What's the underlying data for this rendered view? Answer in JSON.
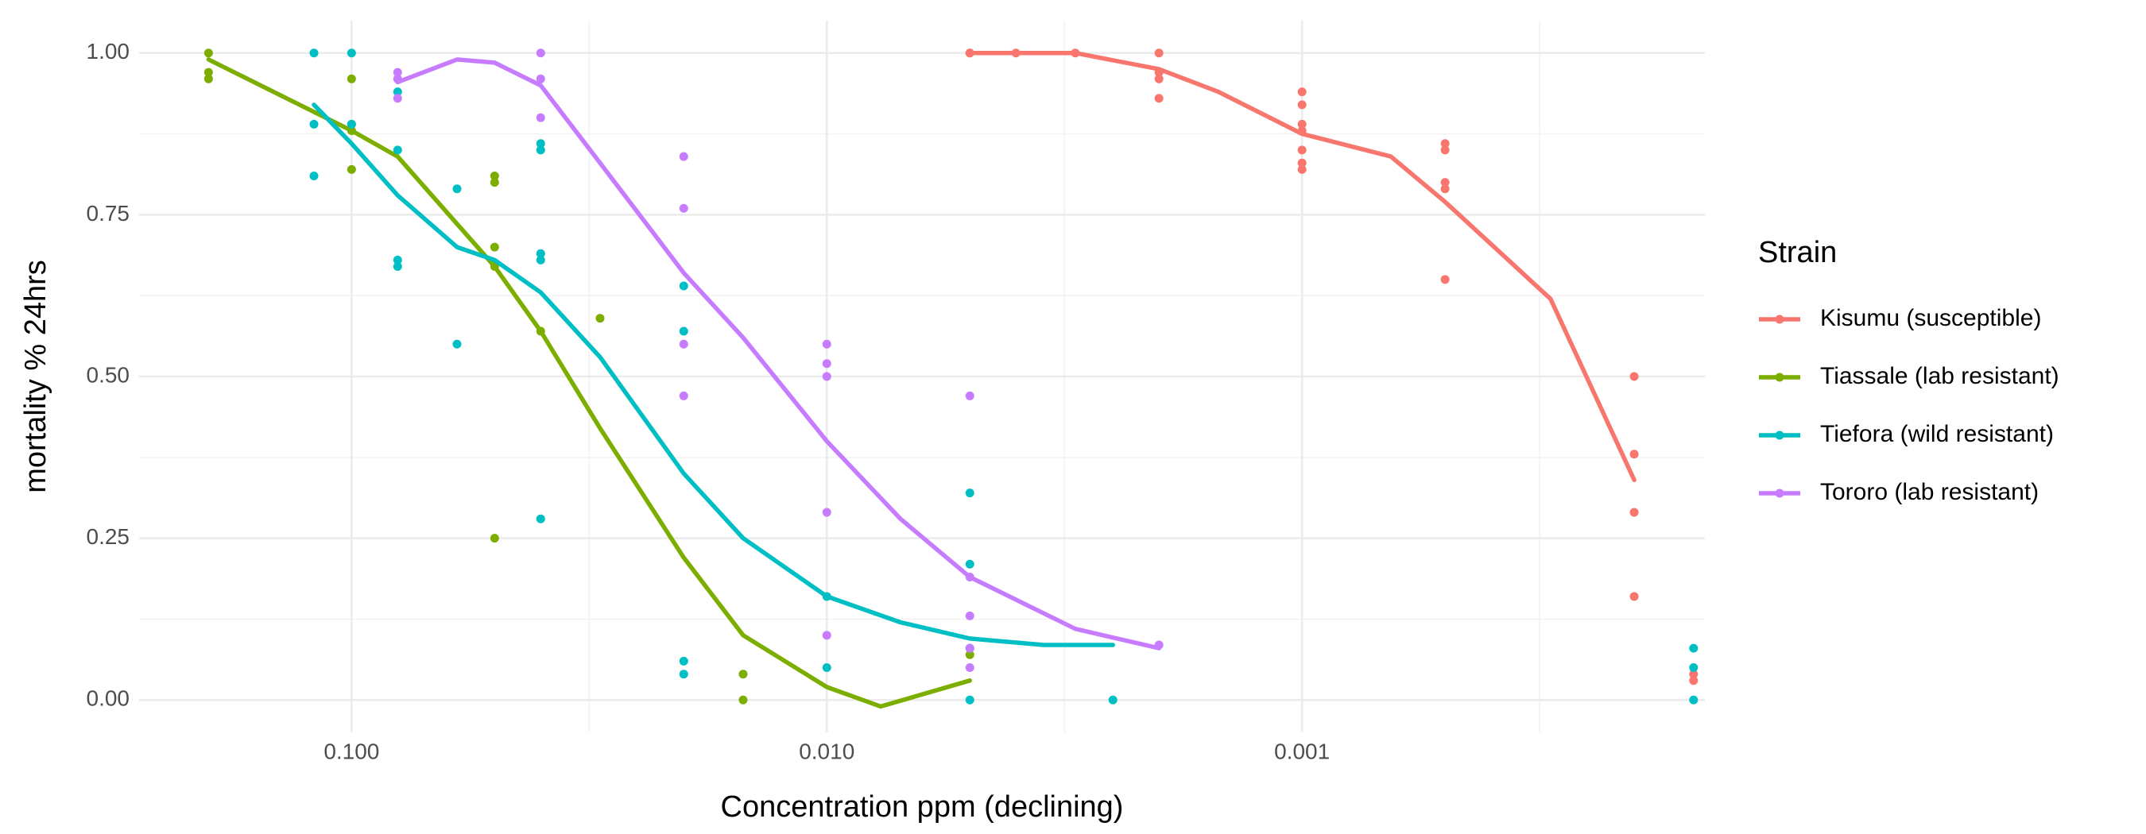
{
  "chart_data": {
    "type": "scatter",
    "x_label": "Concentration ppm (declining)",
    "y_label": "mortality % 24hrs",
    "xscale": "log",
    "xlim": [
      0.28,
      0.000142
    ],
    "ylim": [
      -0.05,
      1.05
    ],
    "xticks": [
      {
        "value": 0.1,
        "label": "0.100"
      },
      {
        "value": 0.01,
        "label": "0.010"
      },
      {
        "value": 0.001,
        "label": "0.001"
      }
    ],
    "yticks": [
      {
        "value": 0,
        "label": "0.00"
      },
      {
        "value": 0.25,
        "label": "0.25"
      },
      {
        "value": 0.5,
        "label": "0.50"
      },
      {
        "value": 0.75,
        "label": "0.75"
      },
      {
        "value": 1,
        "label": "1.00"
      }
    ],
    "grid": true,
    "legend_title": "Strain",
    "series": [
      {
        "name": "Kisumu (susceptible)",
        "color": "#F8766D",
        "x": [
          0.005,
          0.005,
          0.004,
          0.003,
          0.002,
          0.002,
          0.002,
          0.002,
          0.001,
          0.001,
          0.001,
          0.001,
          0.001,
          0.001,
          0.001,
          0.0005,
          0.0005,
          0.0005,
          0.0005,
          0.0005,
          0.0002,
          0.0002,
          0.0002,
          0.0002,
          0.00015,
          0.00015
        ],
        "values": [
          1.0,
          1.0,
          1.0,
          1.0,
          1.0,
          0.97,
          0.96,
          0.93,
          0.94,
          0.92,
          0.89,
          0.88,
          0.85,
          0.83,
          0.82,
          0.86,
          0.85,
          0.8,
          0.79,
          0.65,
          0.5,
          0.38,
          0.29,
          0.16,
          0.04,
          0.03
        ],
        "fit_x": [
          0.005,
          0.004,
          0.003,
          0.002,
          0.0015,
          0.001,
          0.00065,
          0.0005,
          0.0003,
          0.0002
        ],
        "fit_y": [
          1.0,
          1.0,
          1.0,
          0.975,
          0.94,
          0.875,
          0.84,
          0.77,
          0.62,
          0.34
        ]
      },
      {
        "name": "Tiassale (lab resistant)",
        "color": "#7CAE00",
        "x": [
          0.2,
          0.2,
          0.2,
          0.1,
          0.1,
          0.1,
          0.1,
          0.05,
          0.05,
          0.05,
          0.05,
          0.05,
          0.03,
          0.04,
          0.015,
          0.015,
          0.005,
          0.005
        ],
        "values": [
          1.0,
          0.97,
          0.96,
          0.96,
          0.89,
          0.88,
          0.82,
          0.81,
          0.8,
          0.7,
          0.67,
          0.25,
          0.59,
          0.57,
          0.04,
          0.0,
          0.08,
          0.07
        ],
        "fit_x": [
          0.2,
          0.1,
          0.08,
          0.05,
          0.04,
          0.03,
          0.02,
          0.015,
          0.01,
          0.0077,
          0.005
        ],
        "fit_y": [
          0.99,
          0.88,
          0.84,
          0.67,
          0.57,
          0.42,
          0.22,
          0.1,
          0.02,
          -0.01,
          0.03
        ]
      },
      {
        "name": "Tiefora (wild resistant)",
        "color": "#00BFC4",
        "x": [
          0.12,
          0.12,
          0.12,
          0.1,
          0.1,
          0.08,
          0.08,
          0.08,
          0.08,
          0.06,
          0.06,
          0.04,
          0.04,
          0.04,
          0.04,
          0.04,
          0.02,
          0.02,
          0.02,
          0.02,
          0.01,
          0.01,
          0.005,
          0.005,
          0.005,
          0.005,
          0.0025,
          0.00015,
          0.00015,
          0.00015
        ],
        "values": [
          1.0,
          0.89,
          0.81,
          1.0,
          0.89,
          0.94,
          0.85,
          0.68,
          0.67,
          0.79,
          0.55,
          0.86,
          0.85,
          0.69,
          0.68,
          0.28,
          0.64,
          0.57,
          0.06,
          0.04,
          0.16,
          0.05,
          0.32,
          0.21,
          0.08,
          0.0,
          0.0,
          0.08,
          0.05,
          0.0
        ],
        "fit_x": [
          0.12,
          0.1,
          0.08,
          0.06,
          0.05,
          0.04,
          0.03,
          0.02,
          0.015,
          0.01,
          0.007,
          0.005,
          0.0035,
          0.0025
        ],
        "fit_y": [
          0.92,
          0.86,
          0.78,
          0.7,
          0.68,
          0.63,
          0.53,
          0.35,
          0.25,
          0.16,
          0.12,
          0.095,
          0.085,
          0.085
        ]
      },
      {
        "name": "Tororo (lab resistant)",
        "color": "#C77CFF",
        "x": [
          0.08,
          0.08,
          0.08,
          0.04,
          0.04,
          0.04,
          0.02,
          0.02,
          0.02,
          0.02,
          0.01,
          0.01,
          0.01,
          0.01,
          0.01,
          0.005,
          0.005,
          0.005,
          0.005,
          0.005,
          0.002
        ],
        "values": [
          0.97,
          0.96,
          0.93,
          1.0,
          0.96,
          0.9,
          0.84,
          0.76,
          0.55,
          0.47,
          0.55,
          0.52,
          0.5,
          0.29,
          0.1,
          0.47,
          0.19,
          0.13,
          0.08,
          0.05,
          0.085
        ],
        "fit_x": [
          0.08,
          0.06,
          0.05,
          0.04,
          0.03,
          0.02,
          0.015,
          0.01,
          0.007,
          0.005,
          0.003,
          0.002
        ],
        "fit_y": [
          0.955,
          0.99,
          0.985,
          0.95,
          0.83,
          0.66,
          0.56,
          0.4,
          0.28,
          0.19,
          0.11,
          0.08
        ]
      }
    ]
  }
}
